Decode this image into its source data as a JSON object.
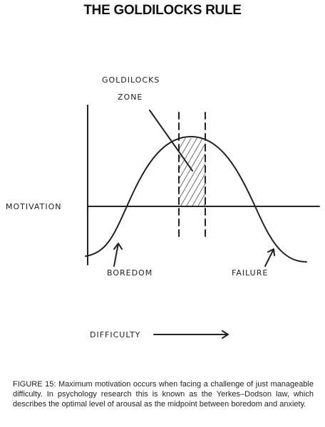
{
  "title": "THE GOLDILOCKS RULE",
  "diagram": {
    "zone_label": [
      "GOLDILOCKS",
      "ZONE"
    ],
    "y_label": "MOTIVATION",
    "x_label": "DIFFICULTY",
    "left_label": "BOREDOM",
    "right_label": "FAILURE"
  },
  "caption": "FIGURE 15: Maximum motivation occurs when facing a challenge of just manageable difficulty. In psychology research this is known as the Yerkes–Dodson law, which describes the optimal level of arousal as the midpoint between boredom and anxiety."
}
